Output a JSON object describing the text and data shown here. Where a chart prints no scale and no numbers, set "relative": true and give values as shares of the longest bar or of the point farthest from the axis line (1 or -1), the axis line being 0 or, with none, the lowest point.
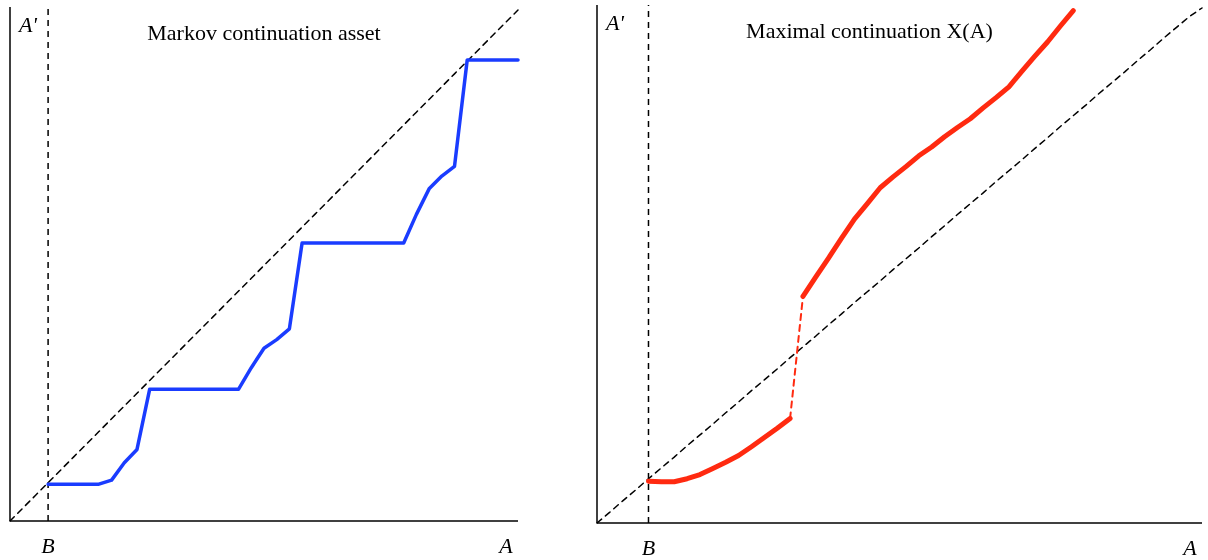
{
  "chart_data": [
    {
      "type": "line",
      "title": "Markov continuation asset",
      "xlabel": "A",
      "ylabel": "A'",
      "relative": true,
      "categories": [
        null,
        null,
        null,
        null,
        null,
        null,
        null,
        null,
        null,
        null,
        null,
        null,
        null,
        null,
        null,
        null,
        null,
        null,
        null,
        null,
        null,
        null,
        null,
        null,
        null,
        null,
        null,
        null,
        null,
        null,
        null,
        null,
        null,
        null,
        null,
        null,
        null,
        null,
        null,
        null,
        null
      ],
      "annotations": [
        "B"
      ],
      "series": [
        {
          "color": "#000000",
          "line_style": "dashed",
          "values": [
            0,
            0.025,
            0.05,
            0.075,
            0.1,
            0.125,
            0.15,
            0.175,
            0.2,
            0.225,
            0.25,
            0.275,
            0.3,
            0.325,
            0.35,
            0.375,
            0.4,
            0.425,
            0.45,
            0.475,
            0.5,
            0.525,
            0.55,
            0.575,
            0.6,
            0.625,
            0.65,
            0.675,
            0.7,
            0.725,
            0.75,
            0.775,
            0.8,
            0.825,
            0.85,
            0.875,
            0.9,
            0.925,
            0.95,
            0.975,
            1
          ]
        },
        {
          "color": "#1a3cff",
          "line_style": "solid",
          "values": [
            null,
            null,
            null,
            0.072,
            0.072,
            0.072,
            0.072,
            0.072,
            0.08,
            0.114,
            0.14,
            0.258,
            0.258,
            0.258,
            0.258,
            0.258,
            0.258,
            0.258,
            0.258,
            0.3,
            0.338,
            0.355,
            0.376,
            0.544,
            0.544,
            0.544,
            0.544,
            0.544,
            0.544,
            0.544,
            0.544,
            0.544,
            0.6,
            0.65,
            0.675,
            0.694,
            0.902,
            0.902,
            0.902,
            0.902,
            0.902
          ]
        }
      ]
    },
    {
      "type": "line",
      "title": "Maximal continuation X(A)",
      "xlabel": "A",
      "ylabel": "A'",
      "relative": true,
      "categories": [
        null,
        null,
        null,
        null,
        null,
        null,
        null,
        null,
        null,
        null,
        null,
        null,
        null,
        null,
        null,
        null,
        null,
        null,
        null,
        null,
        null,
        null,
        null,
        null,
        null,
        null,
        null,
        null,
        null,
        null,
        null,
        null,
        null,
        null,
        null,
        null,
        null,
        null,
        null,
        null,
        null,
        null,
        null,
        null,
        null,
        null,
        null,
        null
      ],
      "annotations": [
        "B"
      ],
      "series": [
        {
          "color": "#000000",
          "line_style": "dashed",
          "values": [
            0,
            0.021,
            0.043,
            0.064,
            0.086,
            0.107,
            0.128,
            0.15,
            0.171,
            0.192,
            0.214,
            0.235,
            0.257,
            0.278,
            0.299,
            0.321,
            0.342,
            0.363,
            0.385,
            0.406,
            0.428,
            0.449,
            0.47,
            0.492,
            0.513,
            0.534,
            0.556,
            0.577,
            0.599,
            0.62,
            0.641,
            0.663,
            0.684,
            0.705,
            0.727,
            0.748,
            0.77,
            0.791,
            0.812,
            0.834,
            0.855,
            0.876,
            0.898,
            0.919,
            0.941,
            0.962,
            0.983,
            1
          ]
        },
        {
          "color": "#ff2a10",
          "line_style": "solid",
          "values": [
            null,
            null,
            null,
            null,
            0.081,
            0.08,
            0.08,
            0.086,
            0.094,
            0.106,
            0.118,
            0.131,
            0.148,
            0.166,
            0.184,
            0.203,
            null,
            null,
            null,
            null,
            null,
            null,
            null,
            null,
            null,
            null,
            null,
            null,
            null,
            null,
            null,
            null,
            null,
            null,
            null,
            null,
            null,
            null,
            null,
            null,
            null,
            null,
            null,
            null,
            null,
            null,
            null,
            null
          ]
        },
        {
          "color": "#ff2a10",
          "line_style": "dashed",
          "values": [
            null,
            null,
            null,
            null,
            null,
            null,
            null,
            null,
            null,
            null,
            null,
            null,
            null,
            null,
            null,
            0.203,
            0.44,
            null,
            null,
            null,
            null,
            null,
            null,
            null,
            null,
            null,
            null,
            null,
            null,
            null,
            null,
            null,
            null,
            null,
            null,
            null,
            null,
            null,
            null,
            null,
            null,
            null,
            null,
            null,
            null,
            null,
            null,
            null
          ]
        },
        {
          "color": "#ff2a10",
          "line_style": "solid",
          "values": [
            null,
            null,
            null,
            null,
            null,
            null,
            null,
            null,
            null,
            null,
            null,
            null,
            null,
            null,
            null,
            null,
            0.44,
            0.478,
            0.515,
            0.553,
            0.59,
            0.62,
            0.651,
            0.672,
            0.692,
            0.713,
            0.73,
            0.75,
            0.768,
            0.785,
            0.806,
            0.826,
            0.847,
            0.877,
            0.906,
            0.934,
            0.965,
            0.995,
            null,
            null,
            null,
            null,
            null,
            null,
            null,
            null,
            null,
            null
          ]
        }
      ]
    }
  ]
}
